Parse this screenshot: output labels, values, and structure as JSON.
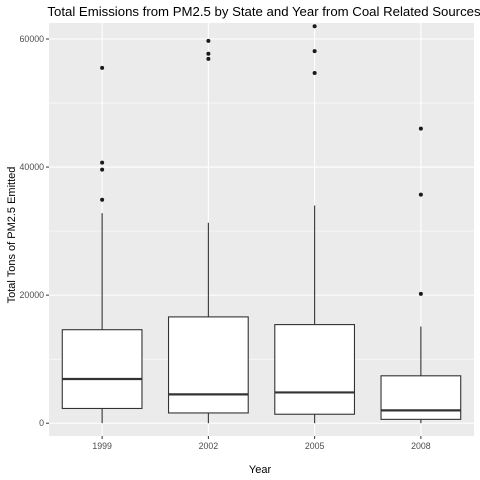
{
  "chart_data": {
    "type": "boxplot",
    "title": "Total Emissions from PM2.5 by State and Year from Coal Related Sources",
    "xlabel": "Year",
    "ylabel": "Total Tons of PM2.5 Emitted",
    "categories": [
      "1999",
      "2002",
      "2005",
      "2008"
    ],
    "ylim": [
      -2000,
      62500
    ],
    "y_ticks": [
      0,
      20000,
      40000,
      60000
    ],
    "y_tick_labels": [
      "0",
      "20000",
      "40000",
      "60000"
    ],
    "grid": true,
    "legend": "none",
    "colors": {
      "panel": "#ebebeb",
      "grid_major": "#ffffff",
      "box_fill": "#ffffff",
      "line": "#333333",
      "outlier": "#1a1a1a"
    },
    "boxes": [
      {
        "category": "1999",
        "whisker_low": 0,
        "q1": 2300,
        "median": 6900,
        "q3": 14600,
        "whisker_high": 32800,
        "outliers": [
          55500,
          40700,
          39600,
          34900
        ]
      },
      {
        "category": "2002",
        "whisker_low": 0,
        "q1": 1600,
        "median": 4500,
        "q3": 16600,
        "whisker_high": 31300,
        "outliers": [
          59700,
          57700,
          56900
        ]
      },
      {
        "category": "2005",
        "whisker_low": 0,
        "q1": 1400,
        "median": 4800,
        "q3": 15400,
        "whisker_high": 34000,
        "outliers": [
          62000,
          58100,
          54700
        ]
      },
      {
        "category": "2008",
        "whisker_low": 0,
        "q1": 600,
        "median": 2000,
        "q3": 7400,
        "whisker_high": 15100,
        "outliers": [
          46000,
          35700,
          20200
        ]
      }
    ]
  }
}
